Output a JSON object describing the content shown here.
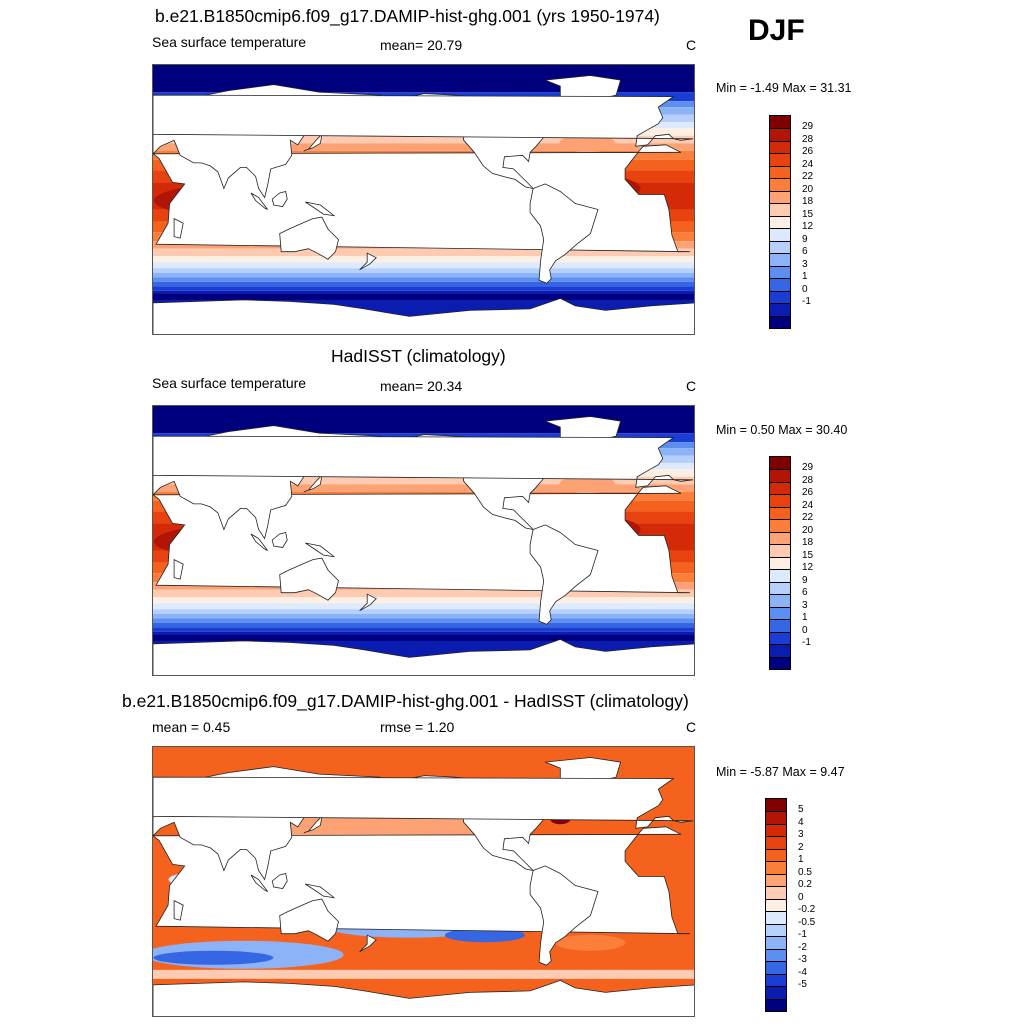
{
  "season": "DJF",
  "panels": [
    {
      "title": "b.e21.B1850cmip6.f09_g17.DAMIP-hist-ghg.001 (yrs 1950-1974)",
      "left_label": "Sea surface temperature",
      "mid_label": "mean=  20.79",
      "units": "C",
      "minmax": "Min =  -1.49 Max =  31.31",
      "field": "model"
    },
    {
      "title": "HadISST (climatology)",
      "left_label": "Sea surface temperature",
      "mid_label": "mean=  20.34",
      "units": "C",
      "minmax": "Min =   0.50 Max =  30.40",
      "field": "obs"
    },
    {
      "title": "b.e21.B1850cmip6.f09_g17.DAMIP-hist-ghg.001 - HadISST (climatology)",
      "left_label": "mean =   0.45",
      "mid_label": "rmse =   1.20",
      "units": "C",
      "minmax": "Min =  -5.87 Max =   9.47",
      "field": "diff"
    }
  ],
  "colorbars": {
    "sst": {
      "labels": [
        "29",
        "28",
        "26",
        "24",
        "22",
        "20",
        "18",
        "15",
        "12",
        "9",
        "6",
        "3",
        "1",
        "0",
        "-1"
      ],
      "colors": [
        "#7f0000",
        "#b01505",
        "#d42a08",
        "#e8430f",
        "#f5621e",
        "#fb7e3a",
        "#fda274",
        "#fdcbb2",
        "#fdefe3",
        "#ddeafd",
        "#b7d0fb",
        "#8cb2f7",
        "#5d8ff0",
        "#3566e4",
        "#1a3ed4",
        "#0a1db0",
        "#00007f"
      ]
    },
    "diff": {
      "labels": [
        "5",
        "4",
        "3",
        "2",
        "1",
        "0.5",
        "0.2",
        "0",
        "-0.2",
        "-0.5",
        "-1",
        "-2",
        "-3",
        "-4",
        "-5"
      ],
      "colors": [
        "#7f0000",
        "#b01505",
        "#d42a08",
        "#e8430f",
        "#f5621e",
        "#fb7e3a",
        "#fda274",
        "#fdcbb2",
        "#fdefe3",
        "#ddeafd",
        "#b7d0fb",
        "#8cb2f7",
        "#5d8ff0",
        "#3566e4",
        "#1a3ed4",
        "#0a1db0",
        "#00007f"
      ]
    }
  }
}
